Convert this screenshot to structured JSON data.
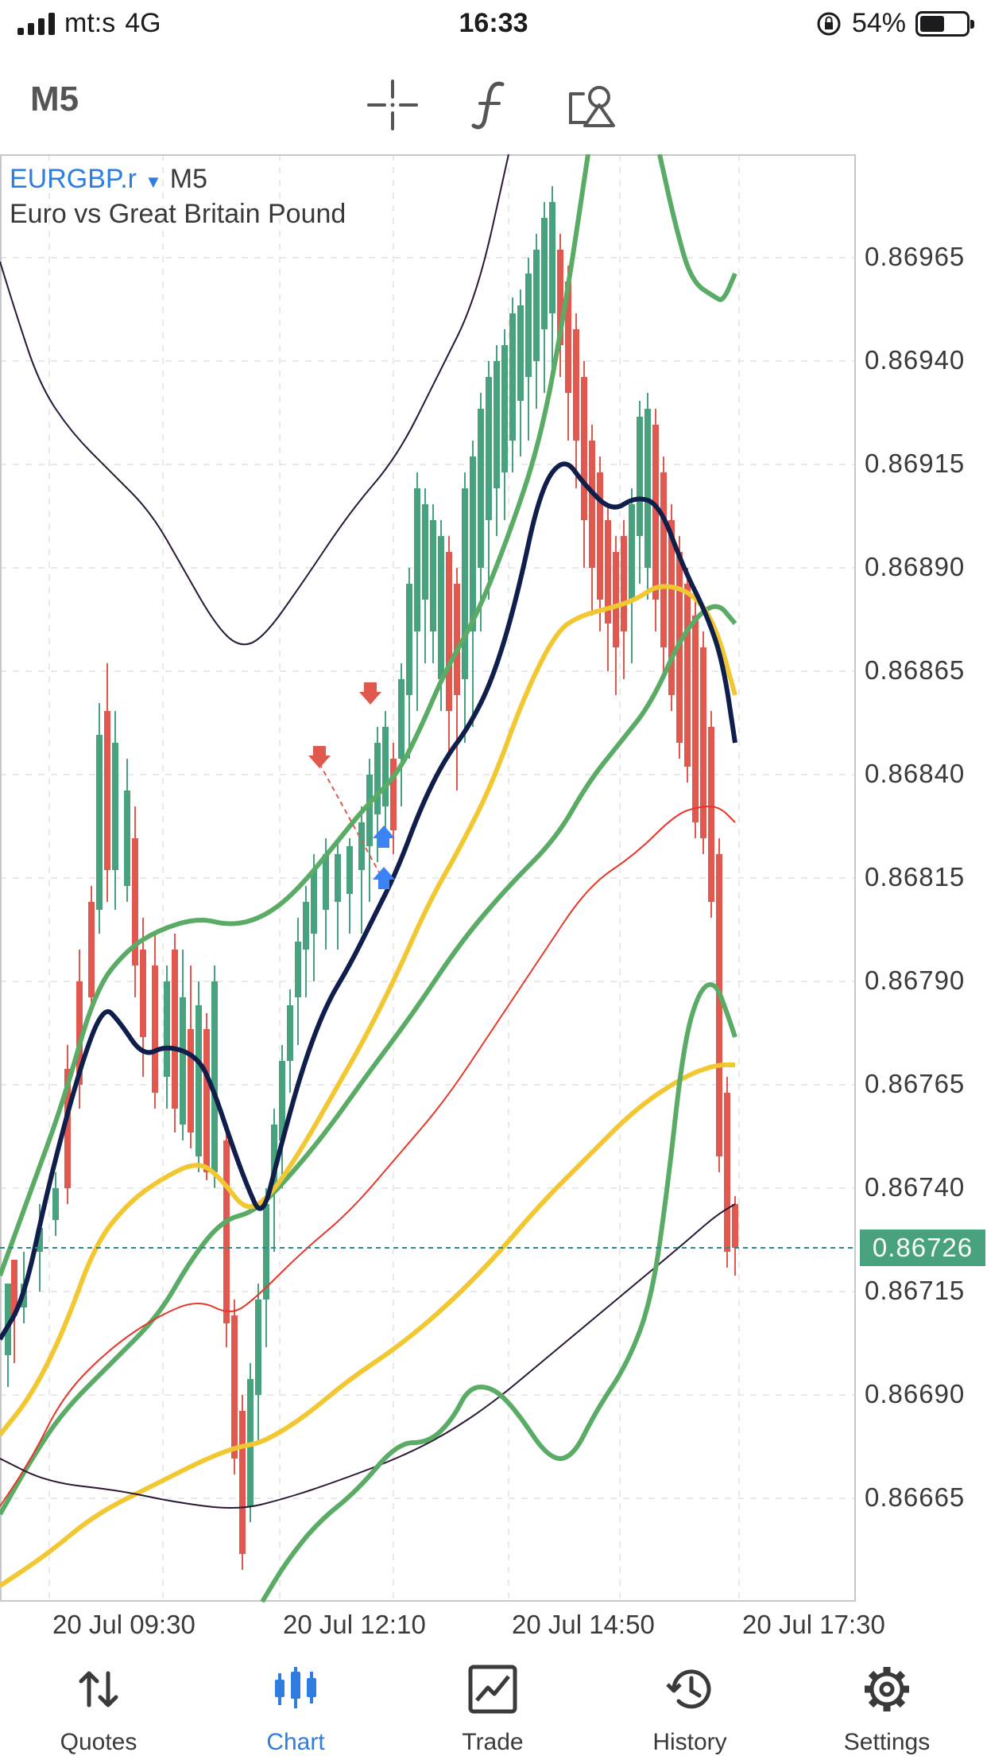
{
  "status": {
    "carrier": "mt:s",
    "network": "4G",
    "time": "16:33",
    "battery": "54%"
  },
  "toolbar": {
    "timeframe": "M5",
    "tools": [
      "crosshair-icon",
      "indicators-icon",
      "objects-icon"
    ]
  },
  "chart": {
    "symbol": "EURGBP.r",
    "timeframe": "M5",
    "description": "Euro vs Great Britain Pound",
    "current_price": "0.86726",
    "price_labels": [
      "0.86965",
      "0.86940",
      "0.86915",
      "0.86890",
      "0.86865",
      "0.86840",
      "0.86815",
      "0.86790",
      "0.86765",
      "0.86740",
      "0.86715",
      "0.86690",
      "0.86665"
    ],
    "time_labels": [
      "20 Jul 09:30",
      "20 Jul 12:10",
      "20 Jul 14:50",
      "20 Jul 17:30"
    ],
    "colors": {
      "bull": "#48a27d",
      "bear": "#e0584e",
      "ma_navy": "#0f1e4a",
      "ma_yellow": "#f2c832",
      "ma_green": "#5aab66",
      "ma_red": "#e8362b",
      "ma_purple": "#2b1836"
    }
  },
  "tabs": [
    {
      "label": "Quotes",
      "icon": "quotes-icon"
    },
    {
      "label": "Chart",
      "icon": "chart-icon"
    },
    {
      "label": "Trade",
      "icon": "trade-icon"
    },
    {
      "label": "History",
      "icon": "history-icon"
    },
    {
      "label": "Settings",
      "icon": "settings-icon"
    }
  ]
}
